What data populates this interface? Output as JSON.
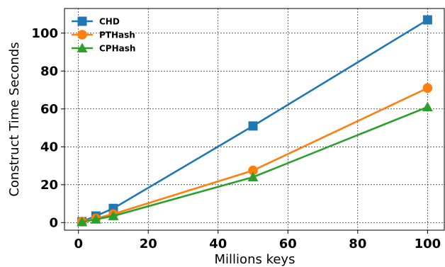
{
  "chart_data": {
    "type": "line",
    "xlabel": "Millions keys",
    "ylabel": "Construct Time Seconds",
    "xlim": [
      -4,
      105
    ],
    "ylim": [
      -4,
      113
    ],
    "xticks": [
      0,
      20,
      40,
      60,
      80,
      100
    ],
    "yticks": [
      0,
      20,
      40,
      60,
      80,
      100
    ],
    "grid": true,
    "legend_position": "top-left",
    "series": [
      {
        "name": "CHD",
        "color": "#1f77b4",
        "marker": "square",
        "x": [
          1,
          5,
          10,
          50,
          100
        ],
        "y": [
          0.5,
          3.5,
          7.5,
          51,
          107
        ]
      },
      {
        "name": "PTHash",
        "color": "#ff7f0e",
        "marker": "circle",
        "x": [
          1,
          5,
          10,
          50,
          100
        ],
        "y": [
          0.5,
          2.2,
          4.5,
          27.5,
          71
        ]
      },
      {
        "name": "CPHash",
        "color": "#2ca02c",
        "marker": "triangle",
        "x": [
          1,
          5,
          10,
          50,
          100
        ],
        "y": [
          0.3,
          1.7,
          3.5,
          24,
          61
        ]
      }
    ]
  }
}
